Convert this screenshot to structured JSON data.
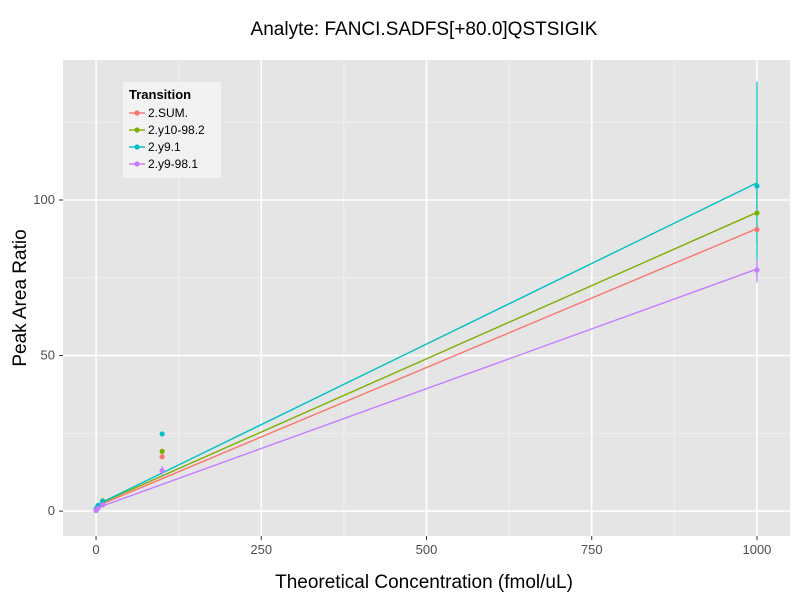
{
  "chart_data": {
    "type": "line",
    "title": "Analyte: FANCI.SADFS[+80.0]QSTSIGIK",
    "xlabel": "Theoretical Concentration (fmol/uL)",
    "ylabel": "Peak Area Ratio",
    "xlim": [
      -50,
      1050
    ],
    "ylim": [
      -8,
      145
    ],
    "xticks": [
      0,
      250,
      500,
      750,
      1000
    ],
    "yticks": [
      0,
      50,
      100
    ],
    "grid": true,
    "legend": {
      "title": "Transition",
      "placement": "top-left"
    },
    "series": [
      {
        "name": "2.SUM.",
        "color": "#F8766D",
        "fit": [
          [
            0,
            1.5
          ],
          [
            1000,
            90.8
          ]
        ],
        "points": [
          [
            0,
            0.3
          ],
          [
            1,
            0.6
          ],
          [
            3,
            1.0
          ],
          [
            10,
            2.5
          ],
          [
            100,
            17.5
          ],
          [
            1000,
            90.5
          ]
        ],
        "errorbars": []
      },
      {
        "name": "2.y10-98.2",
        "color": "#7CAE00",
        "fit": [
          [
            0,
            1.9
          ],
          [
            1000,
            96
          ]
        ],
        "points": [
          [
            0,
            0.4
          ],
          [
            1,
            0.9
          ],
          [
            3,
            1.6
          ],
          [
            10,
            3.3
          ],
          [
            100,
            19.2
          ],
          [
            1000,
            95.8
          ]
        ],
        "errorbars": [
          [
            1000,
            86,
            124
          ]
        ]
      },
      {
        "name": "2.y9.1",
        "color": "#00BFC4",
        "fit": [
          [
            0,
            1.9
          ],
          [
            1000,
            105.5
          ]
        ],
        "points": [
          [
            0,
            0.5
          ],
          [
            1,
            1.0
          ],
          [
            3,
            1.8
          ],
          [
            10,
            3.1
          ],
          [
            100,
            24.8
          ],
          [
            1000,
            104.5
          ]
        ],
        "errorbars": [
          [
            1000,
            75,
            138
          ]
        ]
      },
      {
        "name": "2.y9-98.1",
        "color": "#C77CFF",
        "fit": [
          [
            0,
            0.9
          ],
          [
            1000,
            77.8
          ]
        ],
        "points": [
          [
            0,
            0.2
          ],
          [
            1,
            0.5
          ],
          [
            3,
            0.9
          ],
          [
            10,
            2.0
          ],
          [
            100,
            13.0
          ],
          [
            1000,
            77.5
          ]
        ],
        "errorbars": [
          [
            100,
            11.5,
            14.5
          ],
          [
            1000,
            73.5,
            81
          ]
        ]
      }
    ]
  }
}
